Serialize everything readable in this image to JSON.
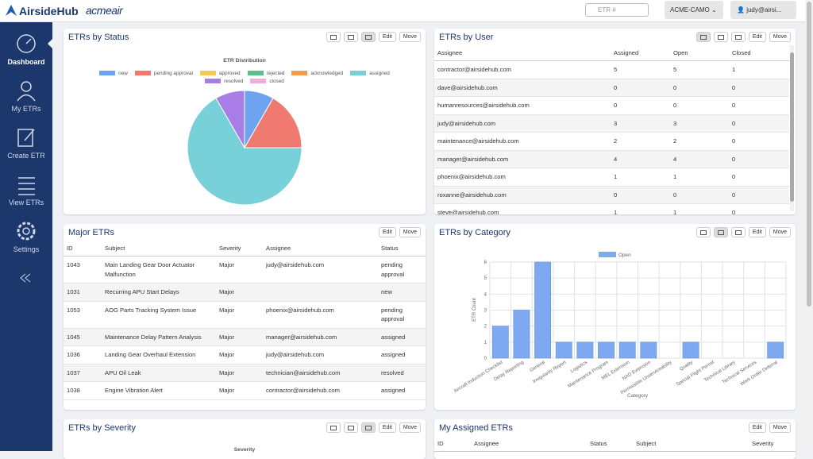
{
  "header": {
    "logo": "AirsideHub",
    "brand": "acmeair",
    "search_placeholder": "ETR #",
    "org": "ACME-CAMO",
    "user": "judy@airsi..."
  },
  "sidebar": {
    "items": [
      "Dashboard",
      "My ETRs",
      "Create ETR",
      "View ETRs",
      "Settings"
    ]
  },
  "buttons": {
    "edit": "Edit",
    "move": "Move"
  },
  "status_panel": {
    "title": "ETRs by Status",
    "chart": {
      "type": "pie",
      "title": "ETR Distribution",
      "categories": [
        "new",
        "pending approval",
        "approved",
        "rejected",
        "acknowledged",
        "assigned",
        "resolved",
        "closed"
      ],
      "values": [
        1,
        2,
        0,
        0,
        0,
        8,
        1,
        0
      ],
      "colors": [
        "#6ea3f0",
        "#f07a70",
        "#f5c95c",
        "#5cc08a",
        "#f59b4d",
        "#78d0d8",
        "#a97de6",
        "#f5aadb"
      ]
    }
  },
  "user_panel": {
    "title": "ETRs by User",
    "columns": [
      "Assignee",
      "Assigned",
      "Open",
      "Closed"
    ],
    "rows": [
      [
        "contractor@airsidehub.com",
        5,
        5,
        1
      ],
      [
        "dave@airsidehub.com",
        0,
        0,
        0
      ],
      [
        "humanresources@airsidehub.com",
        0,
        0,
        0
      ],
      [
        "judy@airsidehub.com",
        3,
        3,
        0
      ],
      [
        "maintenance@airsidehub.com",
        2,
        2,
        0
      ],
      [
        "manager@airsidehub.com",
        4,
        4,
        0
      ],
      [
        "phoenix@airsidehub.com",
        1,
        1,
        0
      ],
      [
        "roxanne@airsidehub.com",
        0,
        0,
        0
      ],
      [
        "steve@airsidehub.com",
        1,
        1,
        0
      ]
    ]
  },
  "major_panel": {
    "title": "Major ETRs",
    "columns": [
      "ID",
      "Subject",
      "Severity",
      "Assignee",
      "Status"
    ],
    "rows": [
      [
        "1043",
        "Main Landing Gear Door Actuator Malfunction",
        "Major",
        "judy@airsidehub.com",
        "pending approval"
      ],
      [
        "1031",
        "Recurring APU Start Delays",
        "Major",
        null,
        "new"
      ],
      [
        "1053",
        "AOG Parts Tracking System Issue",
        "Major",
        "phoenix@airsidehub.com",
        "pending approval"
      ],
      [
        "1045",
        "Maintenance Delay Pattern Analysis",
        "Major",
        "manager@airsidehub.com",
        "assigned"
      ],
      [
        "1036",
        "Landing Gear Overhaul Extension",
        "Major",
        "judy@airsidehub.com",
        "assigned"
      ],
      [
        "1037",
        "APU Oil Leak",
        "Major",
        "technician@airsidehub.com",
        "resolved"
      ],
      [
        "1038",
        "Engine Vibration Alert",
        "Major",
        "contractor@airsidehub.com",
        "assigned"
      ]
    ]
  },
  "category_panel": {
    "title": "ETRs by Category",
    "chart": {
      "type": "bar",
      "legend": "Open",
      "ylabel": "ETR Count",
      "xlabel": "Category",
      "color": "#7ea8ef",
      "categories": [
        "Aircraft Induction Checklist",
        "Delay Reporting",
        "General",
        "Irregularity Report",
        "Logistics",
        "Maintenance Program",
        "MEL Extension",
        "NAD Extension",
        "Permissible Unserviceability",
        "Quality",
        "Special Flight Permit",
        "Technical Library",
        "Technical Services",
        "Work Order Deferral"
      ],
      "values": [
        2,
        3,
        6,
        1,
        1,
        1,
        1,
        1,
        0,
        1,
        0,
        0,
        0,
        1
      ],
      "ylim": [
        0,
        6
      ],
      "yticks": [
        0,
        1,
        2,
        3,
        4,
        5,
        6
      ],
      "grid": true
    }
  },
  "severity_panel": {
    "title": "ETRs by Severity",
    "chart_title": "Severity"
  },
  "assigned_panel": {
    "title": "My Assigned ETRs",
    "columns": [
      "ID",
      "Assignee",
      "Status",
      "Subject",
      "Severity"
    ]
  }
}
